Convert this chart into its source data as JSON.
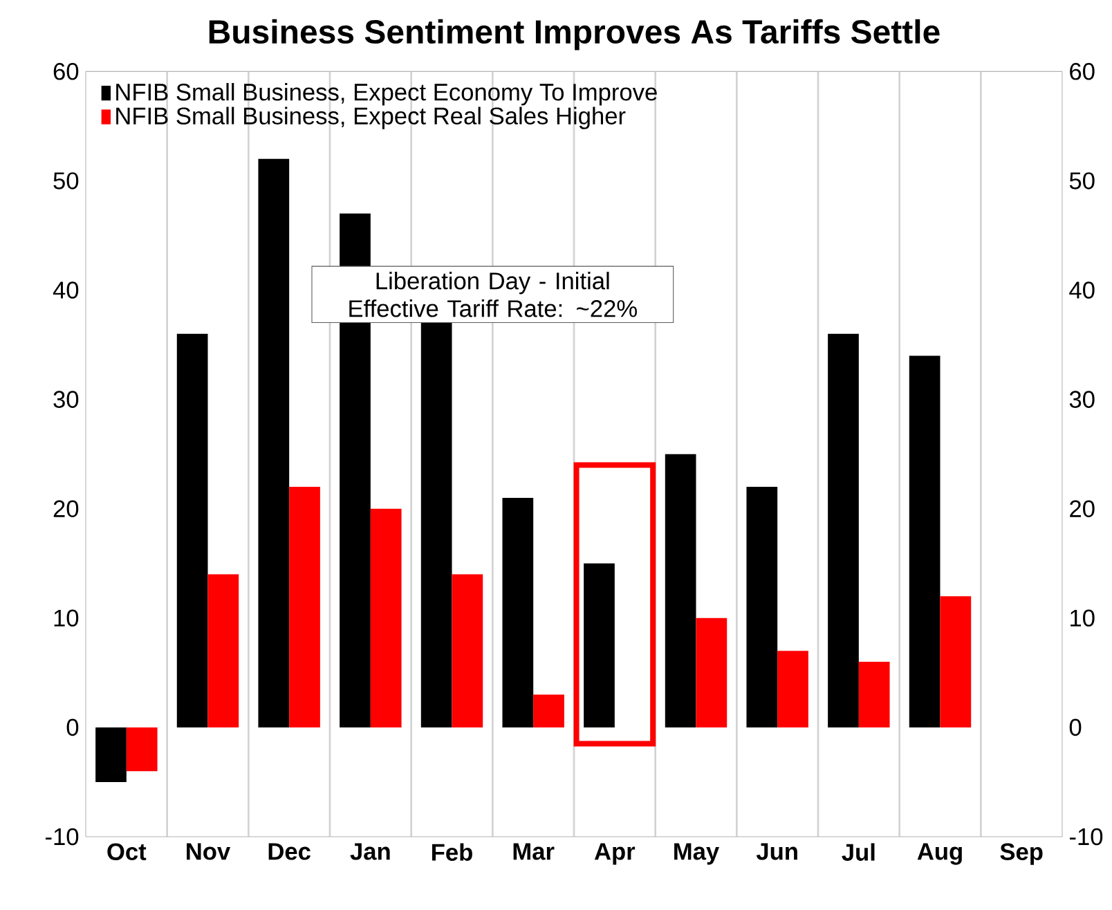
{
  "chart_data": {
    "type": "bar",
    "title": "Business Sentiment Improves As Tariffs Settle",
    "categories": [
      "Oct",
      "Nov",
      "Dec",
      "Jan",
      "Feb",
      "Mar",
      "Apr",
      "May",
      "Jun",
      "Jul",
      "Aug",
      "Sep"
    ],
    "series": [
      {
        "name": "NFIB Small Business, Expect Economy To Improve",
        "color": "#000000",
        "values": [
          -5,
          36,
          52,
          47,
          37,
          21,
          15,
          25,
          22,
          36,
          34,
          null
        ]
      },
      {
        "name": "NFIB Small Business, Expect Real Sales Higher",
        "color": "#ff0000",
        "values": [
          -4,
          14,
          22,
          20,
          14,
          3,
          0,
          10,
          7,
          6,
          12,
          null
        ]
      }
    ],
    "ylim": [
      -10,
      60
    ],
    "yticks": [
      -10,
      0,
      10,
      20,
      30,
      40,
      50,
      60
    ],
    "y2lim": [
      -10,
      60
    ],
    "y2ticks": [
      -10,
      0,
      10,
      20,
      30,
      40,
      50,
      60
    ],
    "annotations": [
      "Liberation Day - Initial Effective Tariff Rate: ~22%"
    ],
    "grid": "x",
    "legend": "top left"
  }
}
